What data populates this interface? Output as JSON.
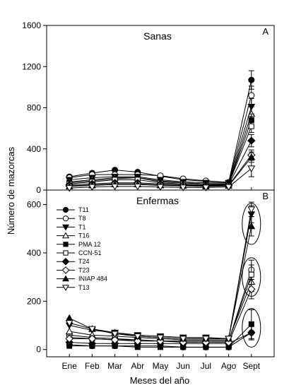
{
  "chart_data": {
    "type": "line",
    "xlabel": "Meses del año",
    "ylabel": "Número de mazorcas",
    "categories": [
      "Ene",
      "Feb",
      "Mar",
      "Abr",
      "May",
      "Jun",
      "Jul",
      "Ago",
      "Sept"
    ],
    "markers": {
      "T11": "circle-filled",
      "T8": "circle-open",
      "T1": "triangle-down-filled",
      "T16": "triangle-up-open",
      "PMA 12": "square-filled",
      "CCN-51": "square-open",
      "T24": "diamond-filled",
      "T23": "diamond-open",
      "INIAP 484": "triangle-up-filled",
      "T13": "triangle-down-open"
    },
    "panels": [
      {
        "id": "A",
        "letter": "A",
        "title": "Sanas",
        "ylim": [
          0,
          1600
        ],
        "yticks": [
          0,
          400,
          800,
          1200,
          1600
        ],
        "series": [
          {
            "key": "T11",
            "values": [
              130,
              165,
              195,
              175,
              135,
              100,
              85,
              75,
              1070
            ],
            "error": [
              0,
              0,
              0,
              0,
              0,
              0,
              0,
              0,
              90
            ]
          },
          {
            "key": "T8",
            "values": [
              120,
              150,
              150,
              150,
              140,
              110,
              90,
              75,
              920
            ],
            "error": [
              0,
              0,
              0,
              0,
              0,
              0,
              0,
              0,
              90
            ]
          },
          {
            "key": "T1",
            "values": [
              100,
              120,
              130,
              130,
              100,
              80,
              70,
              70,
              810
            ],
            "error": [
              0,
              0,
              0,
              0,
              0,
              0,
              0,
              0,
              80
            ]
          },
          {
            "key": "T16",
            "values": [
              80,
              100,
              120,
              120,
              90,
              70,
              60,
              60,
              740
            ],
            "error": [
              0,
              0,
              0,
              0,
              0,
              0,
              0,
              0,
              70
            ]
          },
          {
            "key": "PMA 12",
            "values": [
              70,
              90,
              110,
              120,
              80,
              70,
              60,
              60,
              680
            ],
            "error": [
              0,
              0,
              0,
              0,
              0,
              0,
              0,
              0,
              60
            ]
          },
          {
            "key": "CCN-51",
            "values": [
              60,
              80,
              100,
              100,
              70,
              60,
              50,
              55,
              620
            ],
            "error": [
              0,
              0,
              0,
              0,
              0,
              0,
              0,
              0,
              60
            ]
          },
          {
            "key": "T24",
            "values": [
              50,
              60,
              70,
              70,
              60,
              50,
              45,
              50,
              480
            ],
            "error": [
              0,
              0,
              0,
              0,
              0,
              0,
              0,
              0,
              60
            ]
          },
          {
            "key": "T23",
            "values": [
              40,
              50,
              60,
              60,
              50,
              45,
              40,
              45,
              340
            ],
            "error": [
              0,
              0,
              0,
              0,
              0,
              0,
              0,
              0,
              50
            ]
          },
          {
            "key": "INIAP 484",
            "values": [
              35,
              45,
              55,
              55,
              45,
              40,
              35,
              40,
              320
            ],
            "error": [
              0,
              0,
              0,
              0,
              0,
              0,
              0,
              0,
              50
            ]
          },
          {
            "key": "T13",
            "values": [
              20,
              30,
              35,
              35,
              30,
              25,
              25,
              30,
              210
            ],
            "error": [
              0,
              0,
              0,
              0,
              0,
              0,
              0,
              0,
              80
            ]
          }
        ]
      },
      {
        "id": "B",
        "letter": "B",
        "title": "Enfermas",
        "ylim": [
          -30,
          660
        ],
        "yticks": [
          0,
          200,
          400,
          600
        ],
        "ellipses": [
          {
            "category": "Sept",
            "center": 520,
            "half_height": 85
          },
          {
            "category": "Sept",
            "center": 300,
            "half_height": 80
          },
          {
            "category": "Sept",
            "center": 90,
            "half_height": 80
          }
        ],
        "series": [
          {
            "key": "T11",
            "values": [
              20,
              15,
              15,
              15,
              15,
              10,
              10,
              10,
              70
            ],
            "error": [
              0,
              0,
              0,
              0,
              0,
              0,
              0,
              0,
              30
            ]
          },
          {
            "key": "T8",
            "values": [
              60,
              50,
              45,
              40,
              35,
              35,
              35,
              35,
              330
            ],
            "error": [
              0,
              0,
              0,
              0,
              0,
              0,
              0,
              0,
              40
            ]
          },
          {
            "key": "T1",
            "values": [
              100,
              80,
              70,
              60,
              55,
              50,
              50,
              45,
              560
            ],
            "error": [
              0,
              0,
              0,
              0,
              0,
              0,
              0,
              0,
              35
            ]
          },
          {
            "key": "T16",
            "values": [
              75,
              60,
              55,
              50,
              45,
              40,
              40,
              40,
              280
            ],
            "error": [
              0,
              0,
              0,
              0,
              0,
              0,
              0,
              0,
              40
            ]
          },
          {
            "key": "PMA 12",
            "values": [
              15,
              15,
              15,
              10,
              10,
              10,
              10,
              10,
              105
            ],
            "error": [
              0,
              0,
              0,
              0,
              0,
              0,
              0,
              0,
              60
            ]
          },
          {
            "key": "CCN-51",
            "values": [
              50,
              45,
              40,
              40,
              35,
              35,
              35,
              35,
              310
            ],
            "error": [
              0,
              0,
              0,
              0,
              0,
              0,
              0,
              0,
              40
            ]
          },
          {
            "key": "T24",
            "values": [
              30,
              25,
              25,
              25,
              25,
              25,
              25,
              25,
              70
            ],
            "error": [
              0,
              0,
              0,
              0,
              0,
              0,
              0,
              0,
              30
            ]
          },
          {
            "key": "T23",
            "values": [
              45,
              45,
              40,
              35,
              35,
              30,
              30,
              30,
              250
            ],
            "error": [
              0,
              0,
              0,
              0,
              0,
              0,
              0,
              0,
              40
            ]
          },
          {
            "key": "INIAP 484",
            "values": [
              130,
              85,
              70,
              55,
              50,
              45,
              45,
              45,
              510
            ],
            "error": [
              0,
              0,
              0,
              0,
              0,
              0,
              0,
              0,
              40
            ]
          },
          {
            "key": "T13",
            "values": [
              110,
              85,
              65,
              55,
              50,
              45,
              45,
              45,
              580
            ],
            "error": [
              0,
              0,
              0,
              0,
              0,
              0,
              0,
              0,
              30
            ]
          }
        ]
      }
    ],
    "legend": [
      "T11",
      "T8",
      "T1",
      "T16",
      "PMA 12",
      "CCN-51",
      "T24",
      "T23",
      "INIAP 484",
      "T13"
    ]
  }
}
